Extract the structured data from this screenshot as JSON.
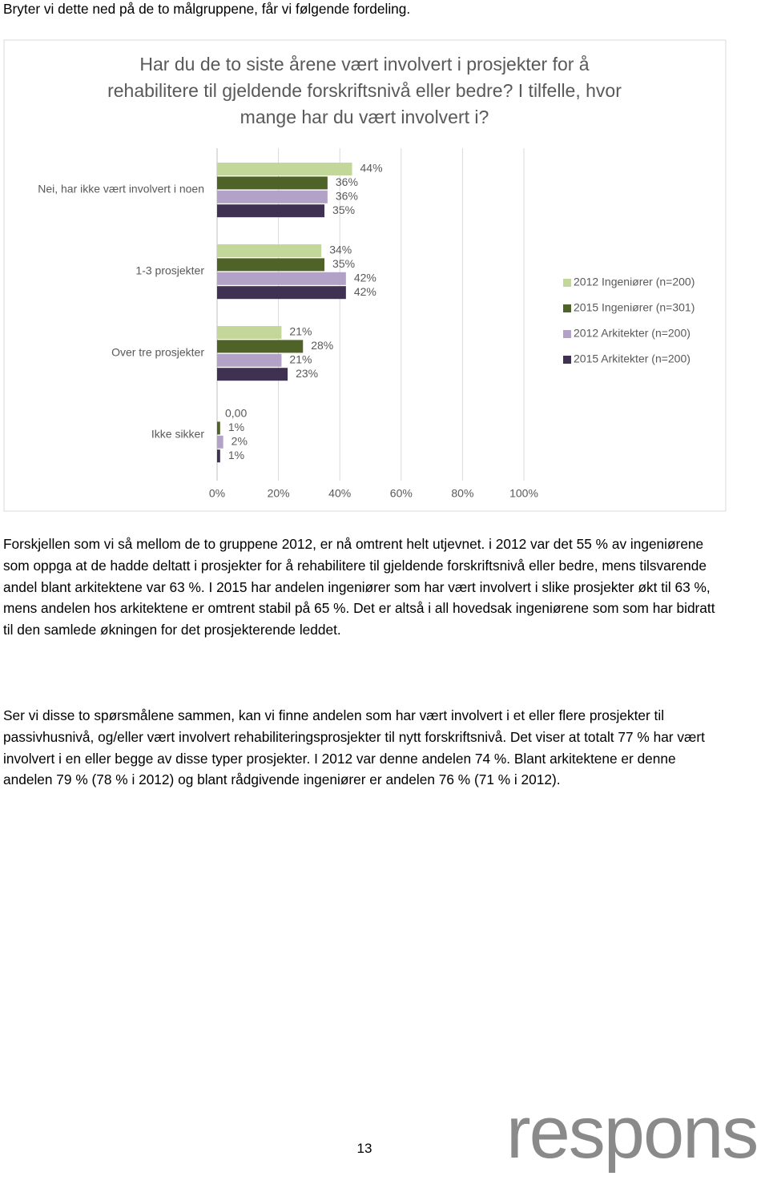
{
  "intro": "Bryter vi dette ned på de to målgruppene, får vi følgende fordeling.",
  "chart_data": {
    "type": "bar",
    "orientation": "horizontal",
    "title": [
      "Har du de to siste årene vært involvert i prosjekter for å",
      "rehabilitere til gjeldende forskriftsnivå eller bedre? I tilfelle, hvor",
      "mange har du vært involvert i?"
    ],
    "categories": [
      "Nei, har ikke vært involvert i noen",
      "1-3 prosjekter",
      "Over tre prosjekter",
      "Ikke sikker"
    ],
    "series": [
      {
        "name": "2012 Ingeniører (n=200)",
        "color": "#c4d79b",
        "values": [
          44,
          34,
          21,
          0
        ],
        "value_labels": [
          "44%",
          "34%",
          "21%",
          "0,00"
        ]
      },
      {
        "name": "2015 Ingeniører (n=301)",
        "color": "#4f6228",
        "values": [
          36,
          35,
          28,
          1
        ],
        "value_labels": [
          "36%",
          "35%",
          "28%",
          "1%"
        ]
      },
      {
        "name": "2012 Arkitekter (n=200)",
        "color": "#b3a2c7",
        "values": [
          36,
          42,
          21,
          2
        ],
        "value_labels": [
          "36%",
          "42%",
          "21%",
          "2%"
        ]
      },
      {
        "name": "2015 Arkitekter (n=200)",
        "color": "#3f3151",
        "values": [
          35,
          42,
          23,
          1
        ],
        "value_labels": [
          "35%",
          "42%",
          "23%",
          "1%"
        ]
      }
    ],
    "xlim": [
      0,
      100
    ],
    "xticks": [
      {
        "value": 0,
        "label": "0%"
      },
      {
        "value": 20,
        "label": "20%"
      },
      {
        "value": 40,
        "label": "40%"
      },
      {
        "value": 60,
        "label": "60%"
      },
      {
        "value": 80,
        "label": "80%"
      },
      {
        "value": 100,
        "label": "100%"
      }
    ],
    "grid": true,
    "legend": "right"
  },
  "paragraphs": [
    "Forskjellen som vi så mellom de to gruppene 2012, er nå omtrent helt utjevnet. i 2012 var det 55 % av ingeniørene som oppga at de hadde deltatt i prosjekter for å rehabilitere til gjeldende forskriftsnivå eller bedre, mens tilsvarende andel blant arkitektene var 63 %. I 2015 har andelen ingeniører som har vært involvert i slike prosjekter økt til 63 %, mens andelen hos arkitektene er omtrent stabil på 65 %. Det er altså i all hovedsak ingeniørene som som har bidratt til den samlede økningen  for det prosjekterende leddet.",
    "Ser vi disse to spørsmålene sammen, kan vi finne andelen som har vært involvert i et eller flere prosjekter til passivhusnivå, og/eller vært involvert rehabiliteringsprosjekter til nytt forskriftsnivå. Det viser at totalt 77 % har vært involvert i en eller begge av disse typer prosjekter. I 2012 var denne andelen 74 %. Blant arkitektene er denne andelen 79 % (78 % i 2012) og blant rådgivende ingeniører er andelen 76 % (71 % i 2012)."
  ],
  "page_number": "13",
  "logo": "respons"
}
